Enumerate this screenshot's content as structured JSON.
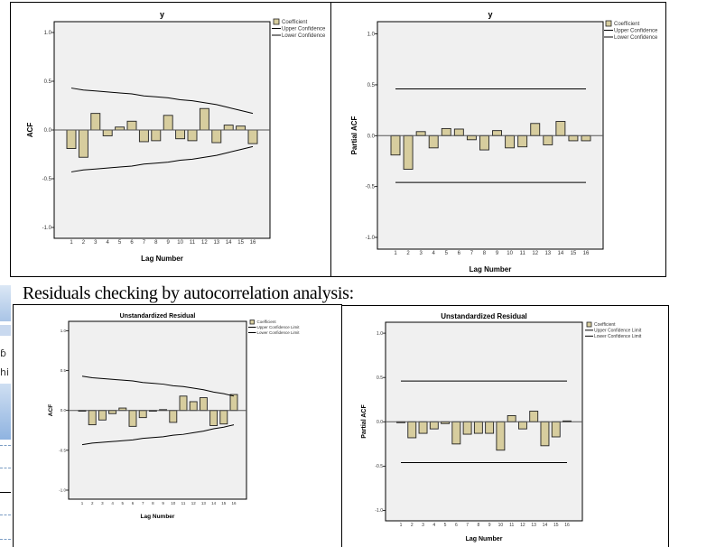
{
  "heading": "Residuals checking by autocorrelation analysis:",
  "fragments": {
    "text1": "ɓ",
    "text2": "hi"
  },
  "colors": {
    "bar_fill": "#d7cd9e",
    "bar_stroke": "#222222",
    "plot_bg": "#f0f0f0",
    "confidence_line": "#000000"
  },
  "chart_data": [
    {
      "type": "bar",
      "title": "y",
      "xlabel": "Lag Number",
      "ylabel": "ACF",
      "ylim": [
        -1.1,
        1.1
      ],
      "yticks": [
        "1.0",
        "0.5",
        "0.0",
        "-0.5",
        "-1.0"
      ],
      "categories": [
        "1",
        "2",
        "3",
        "4",
        "5",
        "6",
        "7",
        "8",
        "9",
        "10",
        "11",
        "12",
        "13",
        "14",
        "15",
        "16"
      ],
      "values": [
        -0.19,
        -0.28,
        0.17,
        -0.06,
        0.03,
        0.09,
        -0.12,
        -0.11,
        0.15,
        -0.09,
        -0.11,
        0.22,
        -0.13,
        0.05,
        0.04,
        -0.14
      ],
      "upper_confidence": [
        0.43,
        0.41,
        0.4,
        0.39,
        0.38,
        0.37,
        0.35,
        0.34,
        0.33,
        0.31,
        0.3,
        0.28,
        0.26,
        0.23,
        0.2,
        0.17
      ],
      "lower_confidence": [
        -0.43,
        -0.41,
        -0.4,
        -0.39,
        -0.38,
        -0.37,
        -0.35,
        -0.34,
        -0.33,
        -0.31,
        -0.3,
        -0.28,
        -0.26,
        -0.23,
        -0.2,
        -0.17
      ],
      "legend": [
        "Coefficient",
        "Upper Confidence",
        "Lower Confidence"
      ],
      "legend_position": "right"
    },
    {
      "type": "bar",
      "title": "y",
      "xlabel": "Lag Number",
      "ylabel": "Partial ACF",
      "ylim": [
        -1.1,
        1.1
      ],
      "yticks": [
        "1.0",
        "0.5",
        "0.0",
        "-0.5",
        "-1.0"
      ],
      "categories": [
        "1",
        "2",
        "3",
        "4",
        "5",
        "6",
        "7",
        "8",
        "9",
        "10",
        "11",
        "12",
        "13",
        "14",
        "15",
        "16"
      ],
      "values": [
        -0.19,
        -0.33,
        0.04,
        -0.12,
        0.07,
        0.065,
        -0.04,
        -0.14,
        0.05,
        -0.12,
        -0.11,
        0.12,
        -0.09,
        0.14,
        -0.05,
        -0.05
      ],
      "upper_confidence": [
        0.46,
        0.46,
        0.46,
        0.46,
        0.46,
        0.46,
        0.46,
        0.46,
        0.46,
        0.46,
        0.46,
        0.46,
        0.46,
        0.46,
        0.46,
        0.46
      ],
      "lower_confidence": [
        -0.46,
        -0.46,
        -0.46,
        -0.46,
        -0.46,
        -0.46,
        -0.46,
        -0.46,
        -0.46,
        -0.46,
        -0.46,
        -0.46,
        -0.46,
        -0.46,
        -0.46,
        -0.46
      ],
      "legend": [
        "Coefficient",
        "Upper Confidence",
        "Lower Confidence"
      ],
      "legend_position": "right"
    },
    {
      "type": "bar",
      "title": "Unstandardized Residual",
      "xlabel": "Lag Number",
      "ylabel": "ACF",
      "ylim": [
        -1.1,
        1.1
      ],
      "yticks": [
        "1.0",
        "0.5",
        "0.0",
        "-0.5",
        "-1.0"
      ],
      "categories": [
        "1",
        "2",
        "3",
        "4",
        "5",
        "6",
        "7",
        "8",
        "9",
        "10",
        "11",
        "12",
        "13",
        "14",
        "15",
        "16"
      ],
      "values": [
        -0.01,
        -0.18,
        -0.12,
        -0.04,
        0.03,
        -0.2,
        -0.09,
        -0.01,
        0.01,
        -0.15,
        0.18,
        0.11,
        0.16,
        -0.19,
        -0.17,
        0.2
      ],
      "upper_confidence": [
        0.43,
        0.41,
        0.4,
        0.39,
        0.38,
        0.37,
        0.35,
        0.34,
        0.33,
        0.31,
        0.3,
        0.28,
        0.26,
        0.23,
        0.21,
        0.18
      ],
      "lower_confidence": [
        -0.43,
        -0.41,
        -0.4,
        -0.39,
        -0.38,
        -0.37,
        -0.35,
        -0.34,
        -0.33,
        -0.31,
        -0.3,
        -0.28,
        -0.26,
        -0.23,
        -0.21,
        -0.18
      ],
      "legend": [
        "Coefficient",
        "Upper Confidence Limit",
        "Lower Confidence Limit"
      ],
      "legend_position": "right"
    },
    {
      "type": "bar",
      "title": "Unstandardized Residual",
      "xlabel": "Lag Number",
      "ylabel": "Partial ACF",
      "ylim": [
        -1.1,
        1.1
      ],
      "yticks": [
        "1.0",
        "0.5",
        "0.0",
        "-0.5",
        "-1.0"
      ],
      "categories": [
        "1",
        "2",
        "3",
        "4",
        "5",
        "6",
        "7",
        "8",
        "9",
        "10",
        "11",
        "12",
        "13",
        "14",
        "15",
        "16"
      ],
      "values": [
        -0.01,
        -0.18,
        -0.13,
        -0.08,
        -0.02,
        -0.25,
        -0.14,
        -0.13,
        -0.13,
        -0.32,
        0.07,
        -0.08,
        0.12,
        -0.27,
        -0.17,
        0.01
      ],
      "upper_confidence": [
        0.46,
        0.46,
        0.46,
        0.46,
        0.46,
        0.46,
        0.46,
        0.46,
        0.46,
        0.46,
        0.46,
        0.46,
        0.46,
        0.46,
        0.46,
        0.46
      ],
      "lower_confidence": [
        -0.46,
        -0.46,
        -0.46,
        -0.46,
        -0.46,
        -0.46,
        -0.46,
        -0.46,
        -0.46,
        -0.46,
        -0.46,
        -0.46,
        -0.46,
        -0.46,
        -0.46,
        -0.46
      ],
      "legend": [
        "Coefficient",
        "Upper Confidence Limit",
        "Lower Confidence Limit"
      ],
      "legend_position": "right"
    }
  ]
}
